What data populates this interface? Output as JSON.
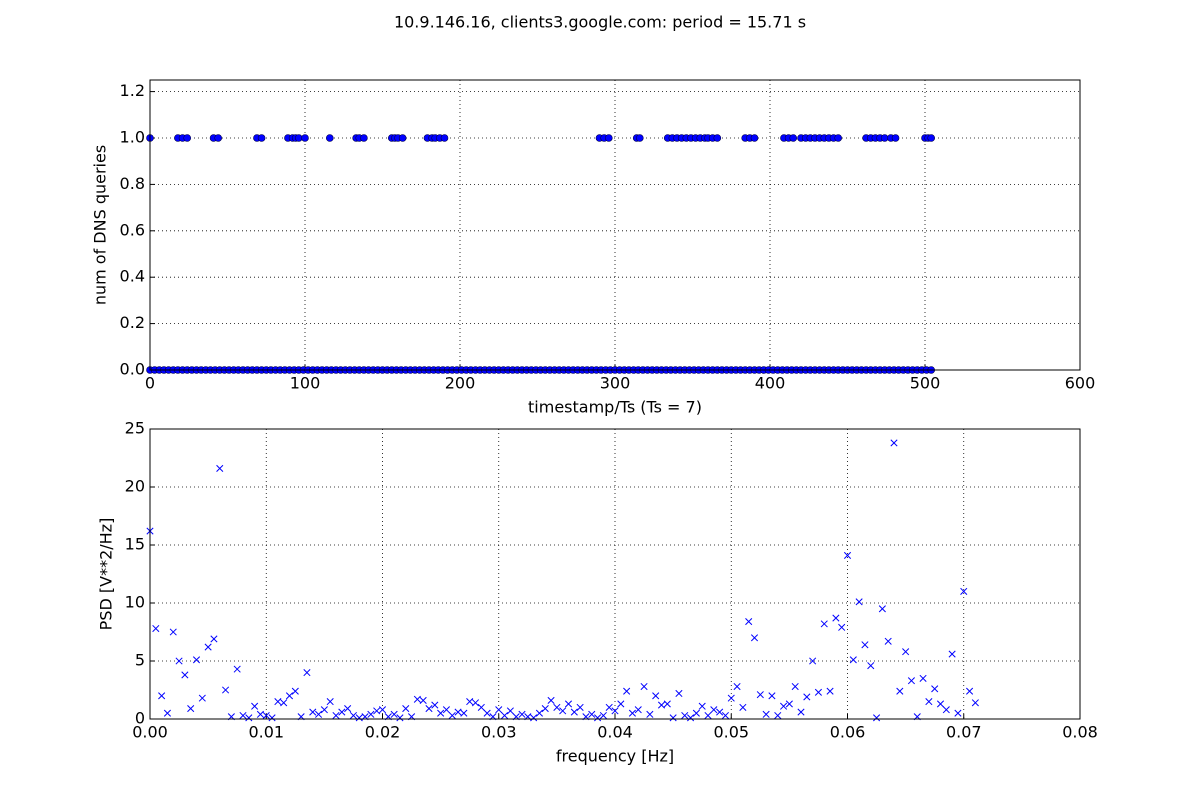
{
  "title": "10.9.146.16, clients3.google.com: period = 15.71 s",
  "chart_data": [
    {
      "type": "scatter",
      "xlabel": "timestamp/Ts (Ts = 7)",
      "ylabel": "num of DNS queries",
      "xlim": [
        0,
        600
      ],
      "xticks": [
        0,
        100,
        200,
        300,
        400,
        500,
        600
      ],
      "ylim": [
        0,
        1.25
      ],
      "yticks": [
        {
          "value": 0,
          "label": "0.0"
        },
        {
          "value": 0.2,
          "label": "0.2"
        },
        {
          "value": 0.4,
          "label": "0.4"
        },
        {
          "value": 0.6,
          "label": "0.6"
        },
        {
          "value": 0.8,
          "label": "0.8"
        },
        {
          "value": 1,
          "label": "1.0"
        },
        {
          "value": 1.2,
          "label": "1.2"
        }
      ],
      "grid": true,
      "series": [
        {
          "color": "#0000ff",
          "marker": "o",
          "x": [
            0,
            3,
            6,
            9,
            12,
            15,
            18,
            21,
            24,
            27,
            30,
            33,
            36,
            39,
            42,
            45,
            48,
            51,
            54,
            57,
            60,
            63,
            66,
            69,
            72,
            75,
            78,
            81,
            84,
            87,
            90,
            93,
            96,
            99,
            102,
            105,
            108,
            111,
            114,
            117,
            120,
            123,
            126,
            129,
            132,
            135,
            138,
            141,
            144,
            147,
            150,
            153,
            156,
            159,
            162,
            165,
            168,
            171,
            174,
            177,
            180,
            183,
            186,
            189,
            192,
            195,
            198,
            201,
            204,
            207,
            210,
            213,
            216,
            219,
            222,
            225,
            228,
            231,
            234,
            237,
            240,
            243,
            246,
            249,
            252,
            255,
            258,
            261,
            264,
            267,
            270,
            273,
            276,
            279,
            282,
            285,
            288,
            291,
            294,
            297,
            300,
            303,
            306,
            309,
            312,
            315,
            318,
            321,
            324,
            327,
            330,
            333,
            336,
            339,
            342,
            345,
            348,
            351,
            354,
            357,
            360,
            363,
            366,
            369,
            372,
            375,
            378,
            381,
            384,
            387,
            390,
            393,
            396,
            399,
            402,
            405,
            408,
            411,
            414,
            417,
            420,
            423,
            426,
            429,
            432,
            435,
            438,
            441,
            444,
            447,
            450,
            453,
            456,
            459,
            462,
            465,
            468,
            471,
            474,
            477,
            480,
            483,
            486,
            489,
            492,
            495,
            498,
            501,
            504
          ],
          "values": [
            0,
            0,
            0,
            0,
            0,
            0,
            0,
            0,
            0,
            0,
            0,
            0,
            0,
            0,
            0,
            0,
            0,
            0,
            0,
            0,
            0,
            0,
            0,
            0,
            0,
            0,
            0,
            0,
            0,
            0,
            0,
            0,
            0,
            0,
            0,
            0,
            0,
            0,
            0,
            0,
            0,
            0,
            0,
            0,
            0,
            0,
            0,
            0,
            0,
            0,
            0,
            0,
            0,
            0,
            0,
            0,
            0,
            0,
            0,
            0,
            0,
            0,
            0,
            0,
            0,
            0,
            0,
            0,
            0,
            0,
            0,
            0,
            0,
            0,
            0,
            0,
            0,
            0,
            0,
            0,
            0,
            0,
            0,
            0,
            0,
            0,
            0,
            0,
            0,
            0,
            0,
            0,
            0,
            0,
            0,
            0,
            0,
            0,
            0,
            0,
            0,
            0,
            0,
            0,
            0,
            0,
            0,
            0,
            0,
            0,
            0,
            0,
            0,
            0,
            0,
            0,
            0,
            0,
            0,
            0,
            0,
            0,
            0,
            0,
            0,
            0,
            0,
            0,
            0,
            0,
            0,
            0,
            0,
            0,
            0,
            0,
            0,
            0,
            0,
            0,
            0,
            0,
            0,
            0,
            0,
            0,
            0,
            0,
            0,
            0,
            0,
            0,
            0,
            0,
            0,
            0,
            0,
            0,
            0,
            0,
            0,
            0,
            0,
            0,
            0,
            0,
            0,
            0,
            0
          ]
        },
        {
          "color": "#0000ff",
          "marker": "o",
          "x": [
            0,
            18,
            21,
            24,
            41,
            44,
            69,
            72,
            89,
            92,
            94,
            96,
            100,
            116,
            133,
            135,
            138,
            156,
            158,
            160,
            163,
            179,
            182,
            184,
            187,
            190,
            290,
            293,
            296,
            314,
            316,
            334,
            337,
            340,
            343,
            346,
            349,
            352,
            355,
            358,
            360,
            363,
            366,
            384,
            387,
            390,
            409,
            412,
            415,
            420,
            423,
            426,
            429,
            432,
            435,
            438,
            441,
            444,
            462,
            465,
            468,
            471,
            474,
            478,
            481,
            500,
            502,
            504
          ],
          "values": [
            1,
            1,
            1,
            1,
            1,
            1,
            1,
            1,
            1,
            1,
            1,
            1,
            1,
            1,
            1,
            1,
            1,
            1,
            1,
            1,
            1,
            1,
            1,
            1,
            1,
            1,
            1,
            1,
            1,
            1,
            1,
            1,
            1,
            1,
            1,
            1,
            1,
            1,
            1,
            1,
            1,
            1,
            1,
            1,
            1,
            1,
            1,
            1,
            1,
            1,
            1,
            1,
            1,
            1,
            1,
            1,
            1,
            1,
            1,
            1,
            1,
            1,
            1,
            1,
            1,
            1,
            1,
            1
          ]
        }
      ]
    },
    {
      "type": "scatter",
      "xlabel": "frequency [Hz]",
      "ylabel": "PSD [V**2/Hz]",
      "xlim": [
        0,
        0.08
      ],
      "xticks": [
        {
          "value": 0,
          "label": "0.00"
        },
        {
          "value": 0.01,
          "label": "0.01"
        },
        {
          "value": 0.02,
          "label": "0.02"
        },
        {
          "value": 0.03,
          "label": "0.03"
        },
        {
          "value": 0.04,
          "label": "0.04"
        },
        {
          "value": 0.05,
          "label": "0.05"
        },
        {
          "value": 0.06,
          "label": "0.06"
        },
        {
          "value": 0.07,
          "label": "0.07"
        },
        {
          "value": 0.08,
          "label": "0.08"
        }
      ],
      "ylim": [
        0,
        25
      ],
      "yticks": [
        0,
        5,
        10,
        15,
        20,
        25
      ],
      "grid": true,
      "series": [
        {
          "color": "#0000ff",
          "marker": "x",
          "x": [
            0,
            0.0005,
            0.001,
            0.0015,
            0.002,
            0.0025,
            0.003,
            0.0035,
            0.004,
            0.0045,
            0.005,
            0.0055,
            0.006,
            0.0065,
            0.007,
            0.0075,
            0.008,
            0.0085,
            0.009,
            0.0095,
            0.01,
            0.0105,
            0.011,
            0.0115,
            0.012,
            0.0125,
            0.013,
            0.0135,
            0.014,
            0.0145,
            0.015,
            0.0155,
            0.016,
            0.0165,
            0.017,
            0.0175,
            0.018,
            0.0185,
            0.019,
            0.0195,
            0.02,
            0.0205,
            0.021,
            0.0215,
            0.022,
            0.0225,
            0.023,
            0.0235,
            0.024,
            0.0245,
            0.025,
            0.0255,
            0.026,
            0.0265,
            0.027,
            0.0275,
            0.028,
            0.0285,
            0.029,
            0.0295,
            0.03,
            0.0305,
            0.031,
            0.0315,
            0.032,
            0.0325,
            0.033,
            0.0335,
            0.034,
            0.0345,
            0.035,
            0.0355,
            0.036,
            0.0365,
            0.037,
            0.0375,
            0.038,
            0.0385,
            0.039,
            0.0395,
            0.04,
            0.0405,
            0.041,
            0.0415,
            0.042,
            0.0425,
            0.043,
            0.0435,
            0.044,
            0.0445,
            0.045,
            0.0455,
            0.046,
            0.0465,
            0.047,
            0.0475,
            0.048,
            0.0485,
            0.049,
            0.0495,
            0.05,
            0.0505,
            0.051,
            0.0515,
            0.052,
            0.0525,
            0.053,
            0.0535,
            0.054,
            0.0545,
            0.055,
            0.0555,
            0.056,
            0.0565,
            0.057,
            0.0575,
            0.058,
            0.0585,
            0.059,
            0.0595,
            0.06,
            0.0605,
            0.061,
            0.0615,
            0.062,
            0.0625,
            0.063,
            0.0635,
            0.064,
            0.0645,
            0.065,
            0.0655,
            0.066,
            0.0665,
            0.067,
            0.0675,
            0.068,
            0.0685,
            0.069,
            0.0695,
            0.07,
            0.0705,
            0.071
          ],
          "values": [
            16.2,
            7.8,
            2.0,
            0.5,
            7.5,
            5.0,
            3.8,
            0.9,
            5.1,
            1.8,
            6.2,
            6.9,
            21.6,
            2.5,
            0.2,
            4.3,
            0.3,
            0.1,
            1.1,
            0.4,
            0.3,
            0.1,
            1.5,
            1.4,
            2.0,
            2.4,
            0.2,
            4.0,
            0.6,
            0.4,
            0.8,
            1.5,
            0.3,
            0.6,
            0.9,
            0.3,
            0.1,
            0.2,
            0.4,
            0.7,
            0.8,
            0.2,
            0.4,
            0.1,
            0.9,
            0.2,
            1.7,
            1.6,
            0.9,
            1.2,
            0.5,
            0.8,
            0.3,
            0.6,
            0.5,
            1.5,
            1.4,
            1.0,
            0.5,
            0.2,
            0.8,
            0.3,
            0.7,
            0.2,
            0.4,
            0.2,
            0.1,
            0.5,
            0.9,
            1.6,
            1.0,
            0.7,
            1.3,
            0.6,
            1.0,
            0.2,
            0.4,
            0.1,
            0.3,
            1.0,
            0.7,
            1.3,
            2.4,
            0.5,
            0.8,
            2.8,
            0.4,
            2.0,
            1.2,
            1.3,
            0.1,
            2.2,
            0.3,
            0.1,
            0.5,
            1.1,
            0.3,
            0.8,
            0.6,
            0.3,
            1.8,
            2.8,
            1.0,
            8.4,
            7.0,
            2.1,
            0.4,
            2.0,
            0.3,
            1.1,
            1.3,
            2.8,
            0.6,
            1.9,
            5.0,
            2.3,
            8.2,
            2.4,
            8.7,
            7.9,
            14.1,
            5.1,
            10.1,
            6.4,
            4.6,
            0.1,
            9.5,
            6.7,
            23.8,
            2.4,
            5.8,
            3.3,
            0.2,
            3.5,
            1.5,
            2.6,
            1.3,
            0.8,
            5.6,
            0.5,
            11.0,
            2.4,
            1.4
          ]
        }
      ]
    }
  ]
}
